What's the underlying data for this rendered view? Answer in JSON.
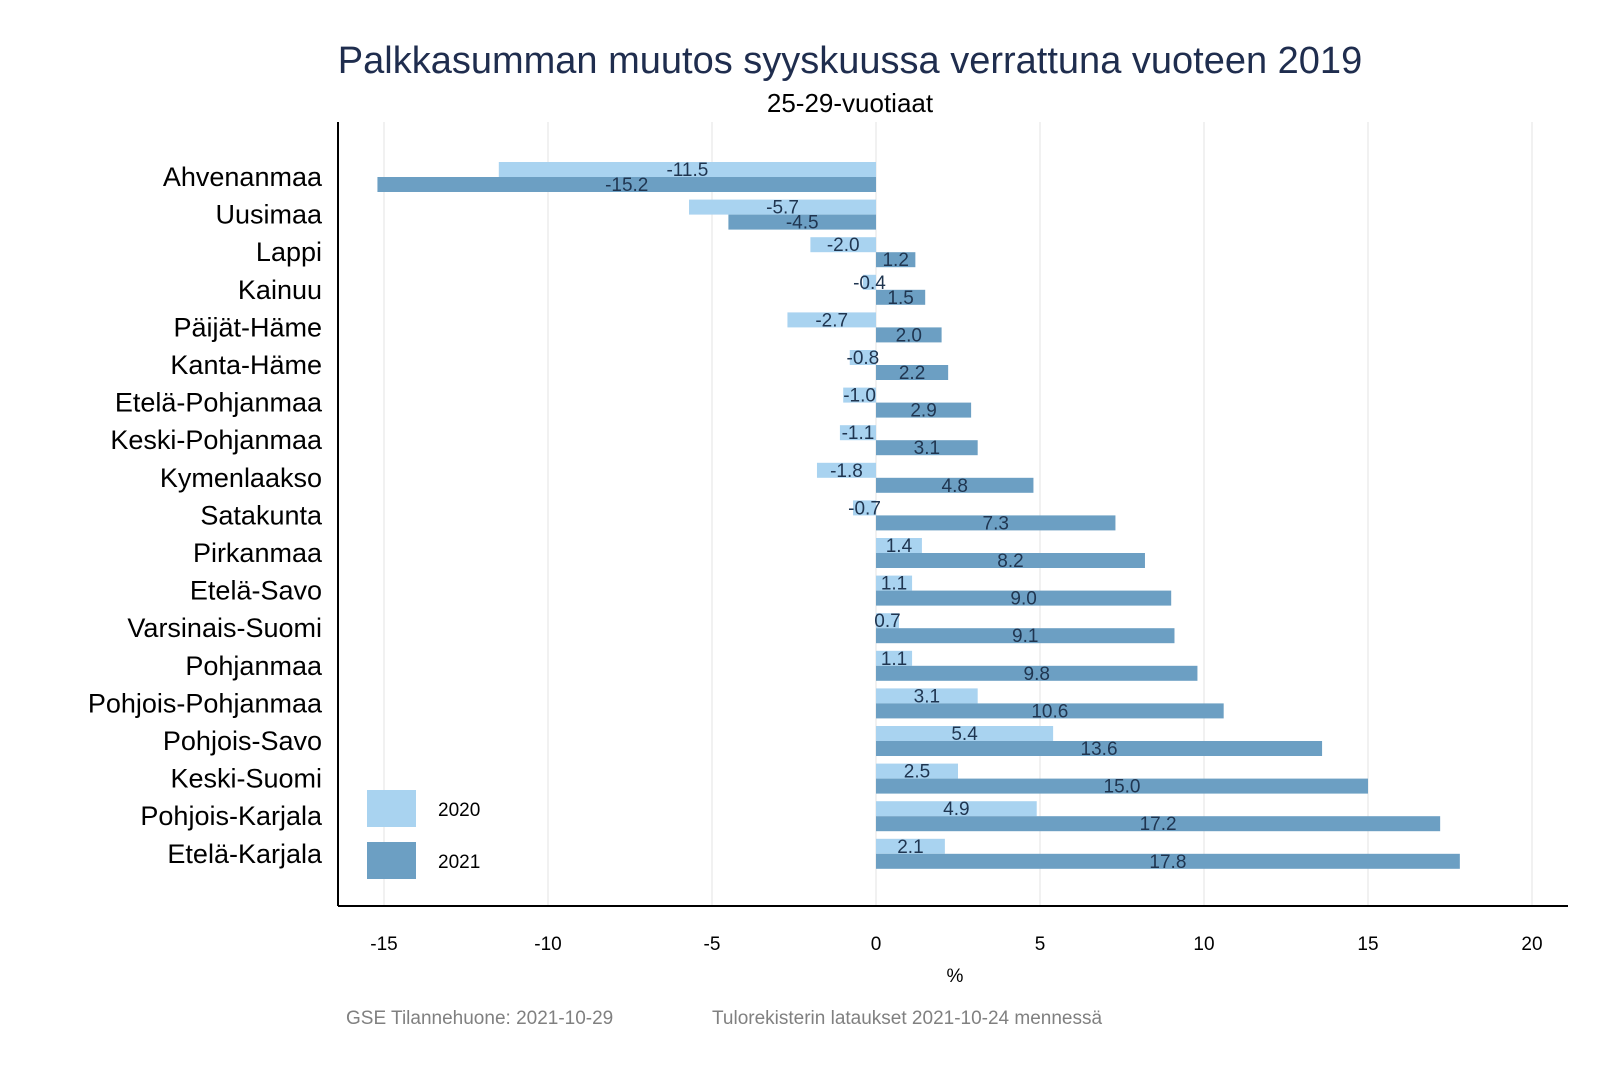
{
  "chart_data": {
    "type": "bar",
    "orientation": "horizontal",
    "title": "Palkkasumman muutos syyskuussa verrattuna vuoteen 2019",
    "subtitle": "25-29-vuotiaat",
    "xlabel": "%",
    "ylabel": "",
    "xlim": [
      -16,
      21
    ],
    "xticks": [
      -15,
      -10,
      -5,
      0,
      5,
      10,
      15,
      20
    ],
    "grid": true,
    "legend_position": "bottom-left",
    "categories": [
      "Ahvenanmaa",
      "Uusimaa",
      "Lappi",
      "Kainuu",
      "Päijät-Häme",
      "Kanta-Häme",
      "Etelä-Pohjanmaa",
      "Keski-Pohjanmaa",
      "Kymenlaakso",
      "Satakunta",
      "Pirkanmaa",
      "Etelä-Savo",
      "Varsinais-Suomi",
      "Pohjanmaa",
      "Pohjois-Pohjanmaa",
      "Pohjois-Savo",
      "Keski-Suomi",
      "Pohjois-Karjala",
      "Etelä-Karjala"
    ],
    "series": [
      {
        "name": "2020",
        "color": "#a9d3f0",
        "values": [
          -11.5,
          -5.7,
          -2.0,
          -0.4,
          -2.7,
          -0.8,
          -1.0,
          -1.1,
          -1.8,
          -0.7,
          1.4,
          1.1,
          0.7,
          1.1,
          3.1,
          5.4,
          2.5,
          4.9,
          2.1
        ],
        "labels": [
          "-11.5",
          "-5.7",
          "-2.0",
          "-0.4",
          "-2.7",
          "-0.8",
          "-1.0",
          "-1.1",
          "-1.8",
          "-0.7",
          "1.4",
          "1.1",
          "0.7",
          "1.1",
          "3.1",
          "5.4",
          "2.5",
          "4.9",
          "2.1"
        ]
      },
      {
        "name": "2021",
        "color": "#6c9fc3",
        "values": [
          -15.2,
          -4.5,
          1.2,
          1.5,
          2.0,
          2.2,
          2.9,
          3.1,
          4.8,
          7.3,
          8.2,
          9.0,
          9.1,
          9.8,
          10.6,
          13.6,
          15.0,
          17.2,
          17.8
        ],
        "labels": [
          "-15.2",
          "-4.5",
          "1.2",
          "1.5",
          "2.0",
          "2.2",
          "2.9",
          "3.1",
          "4.8",
          "7.3",
          "8.2",
          "9.0",
          "9.1",
          "9.8",
          "10.6",
          "13.6",
          "15.0",
          "17.2",
          "17.8"
        ]
      }
    ],
    "footer_left": "GSE Tilannehuone: 2021-10-29",
    "footer_right": "Tulorekisterin lataukset 2021-10-24 mennessä"
  }
}
